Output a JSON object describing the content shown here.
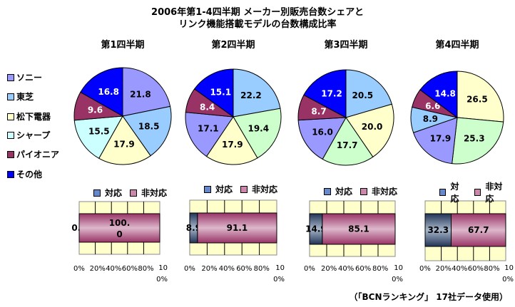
{
  "title_line1": "2006年第1-4四半期  メーカー別販売台数シェアと",
  "title_line2": "リンク機能搭載モデルの台数構成比率",
  "footer": "（「BCNランキング」 17社データ使用）",
  "colors": {
    "ソニー": "#9999ff",
    "東芝": "#99ccff",
    "松下電器": "#ffffcc",
    "シャープ": "#ccffff",
    "シャープ2": "#ccffcc",
    "パイオニア": "#993366",
    "その他": "#0000ff"
  },
  "legend": [
    {
      "label": "ソニー",
      "color": "#9999ff"
    },
    {
      "label": "東芝",
      "color": "#99ccff"
    },
    {
      "label": "松下電器",
      "color": "#ffffcc"
    },
    {
      "label": "シャープ",
      "color": "#ccffff"
    },
    {
      "label": "パイオニア",
      "color": "#993366"
    },
    {
      "label": "その他",
      "color": "#0000ff"
    }
  ],
  "bar_legend": {
    "yes": "対応",
    "no": "非対応",
    "yes_color": "#335577",
    "no_color": "#993366"
  },
  "bar_axis": [
    "0%",
    "20%",
    "40%",
    "60%",
    "80%",
    "100%"
  ],
  "chart_data": [
    {
      "type": "pie",
      "title": "第1四半期",
      "slices": [
        {
          "name": "ソニー",
          "value": 21.8,
          "color": "#9999ff"
        },
        {
          "name": "東芝",
          "value": 18.5,
          "color": "#99ccff"
        },
        {
          "name": "松下電器",
          "value": 17.9,
          "color": "#ffffcc"
        },
        {
          "name": "シャープ",
          "value": 15.5,
          "color": "#ccffff"
        },
        {
          "name": "パイオニア",
          "value": 9.6,
          "color": "#993366"
        },
        {
          "name": "その他",
          "value": 16.8,
          "color": "#0000ff"
        }
      ],
      "bar": {
        "type": "bar",
        "stacked": true,
        "series": [
          {
            "name": "対応",
            "value": 0.0,
            "label": "0.0"
          },
          {
            "name": "非対応",
            "value": 100.0,
            "label": "100.0"
          }
        ],
        "xlim": [
          0,
          100
        ]
      }
    },
    {
      "type": "pie",
      "title": "第2四半期",
      "slices": [
        {
          "name": "東芝",
          "value": 22.2,
          "color": "#99ccff"
        },
        {
          "name": "シャープ",
          "value": 19.4,
          "color": "#ccffcc"
        },
        {
          "name": "松下電器",
          "value": 17.9,
          "color": "#ffffcc"
        },
        {
          "name": "ソニー",
          "value": 17.1,
          "color": "#9999ff"
        },
        {
          "name": "パイオニア",
          "value": 8.4,
          "color": "#993366"
        },
        {
          "name": "その他",
          "value": 15.1,
          "color": "#0000ff"
        }
      ],
      "bar": {
        "type": "bar",
        "stacked": true,
        "series": [
          {
            "name": "対応",
            "value": 8.9,
            "label": "8.9"
          },
          {
            "name": "非対応",
            "value": 91.1,
            "label": "91.1"
          }
        ],
        "xlim": [
          0,
          100
        ]
      }
    },
    {
      "type": "pie",
      "title": "第3四半期",
      "slices": [
        {
          "name": "東芝",
          "value": 20.5,
          "color": "#99ccff"
        },
        {
          "name": "松下電器",
          "value": 20.0,
          "color": "#ffffcc"
        },
        {
          "name": "シャープ",
          "value": 17.7,
          "color": "#ccffcc"
        },
        {
          "name": "ソニー",
          "value": 16.0,
          "color": "#9999ff"
        },
        {
          "name": "パイオニア",
          "value": 8.7,
          "color": "#993366"
        },
        {
          "name": "その他",
          "value": 17.2,
          "color": "#0000ff"
        }
      ],
      "bar": {
        "type": "bar",
        "stacked": true,
        "series": [
          {
            "name": "対応",
            "value": 14.9,
            "label": "14.9"
          },
          {
            "name": "非対応",
            "value": 85.1,
            "label": "85.1"
          }
        ],
        "xlim": [
          0,
          100
        ]
      }
    },
    {
      "type": "pie",
      "title": "第4四半期",
      "slices": [
        {
          "name": "松下電器",
          "value": 26.5,
          "color": "#ffffcc"
        },
        {
          "name": "シャープ",
          "value": 25.3,
          "color": "#ccffcc"
        },
        {
          "name": "ソニー",
          "value": 17.9,
          "color": "#9999ff"
        },
        {
          "name": "東芝",
          "value": 8.9,
          "color": "#99ccff"
        },
        {
          "name": "パイオニア",
          "value": 6.6,
          "color": "#993366"
        },
        {
          "name": "その他",
          "value": 14.8,
          "color": "#0000ff"
        }
      ],
      "bar": {
        "type": "bar",
        "stacked": true,
        "series": [
          {
            "name": "対応",
            "value": 32.3,
            "label": "32.3"
          },
          {
            "name": "非対応",
            "value": 67.7,
            "label": "67.7"
          }
        ],
        "xlim": [
          0,
          100
        ]
      }
    }
  ]
}
